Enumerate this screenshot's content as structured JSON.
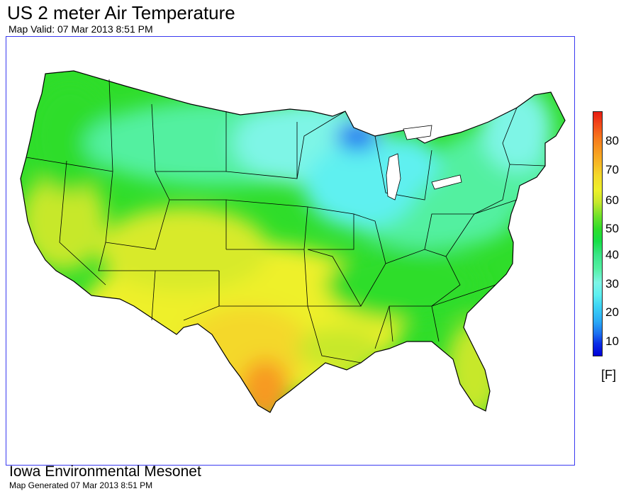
{
  "title": "US 2 meter Air Temperature",
  "subtitle": "Map Valid: 07 Mar 2013 8:51 PM",
  "legend": {
    "ticks": [
      "80",
      "70",
      "60",
      "50",
      "40",
      "30",
      "20",
      "10"
    ],
    "unit": "[F]"
  },
  "footer": {
    "organization": "Iowa Environmental Mesonet",
    "generated": "Map Generated 07 Mar 2013 8:51 PM"
  },
  "colors": {
    "frame": "#3a3af0",
    "coldest": "#0000d8",
    "cold": "#3cd2f5",
    "cool": "#52f0a0",
    "mild": "#2fdd2a",
    "warm": "#eef02a",
    "hot": "#f67a1c",
    "hottest": "#e61c12"
  }
}
